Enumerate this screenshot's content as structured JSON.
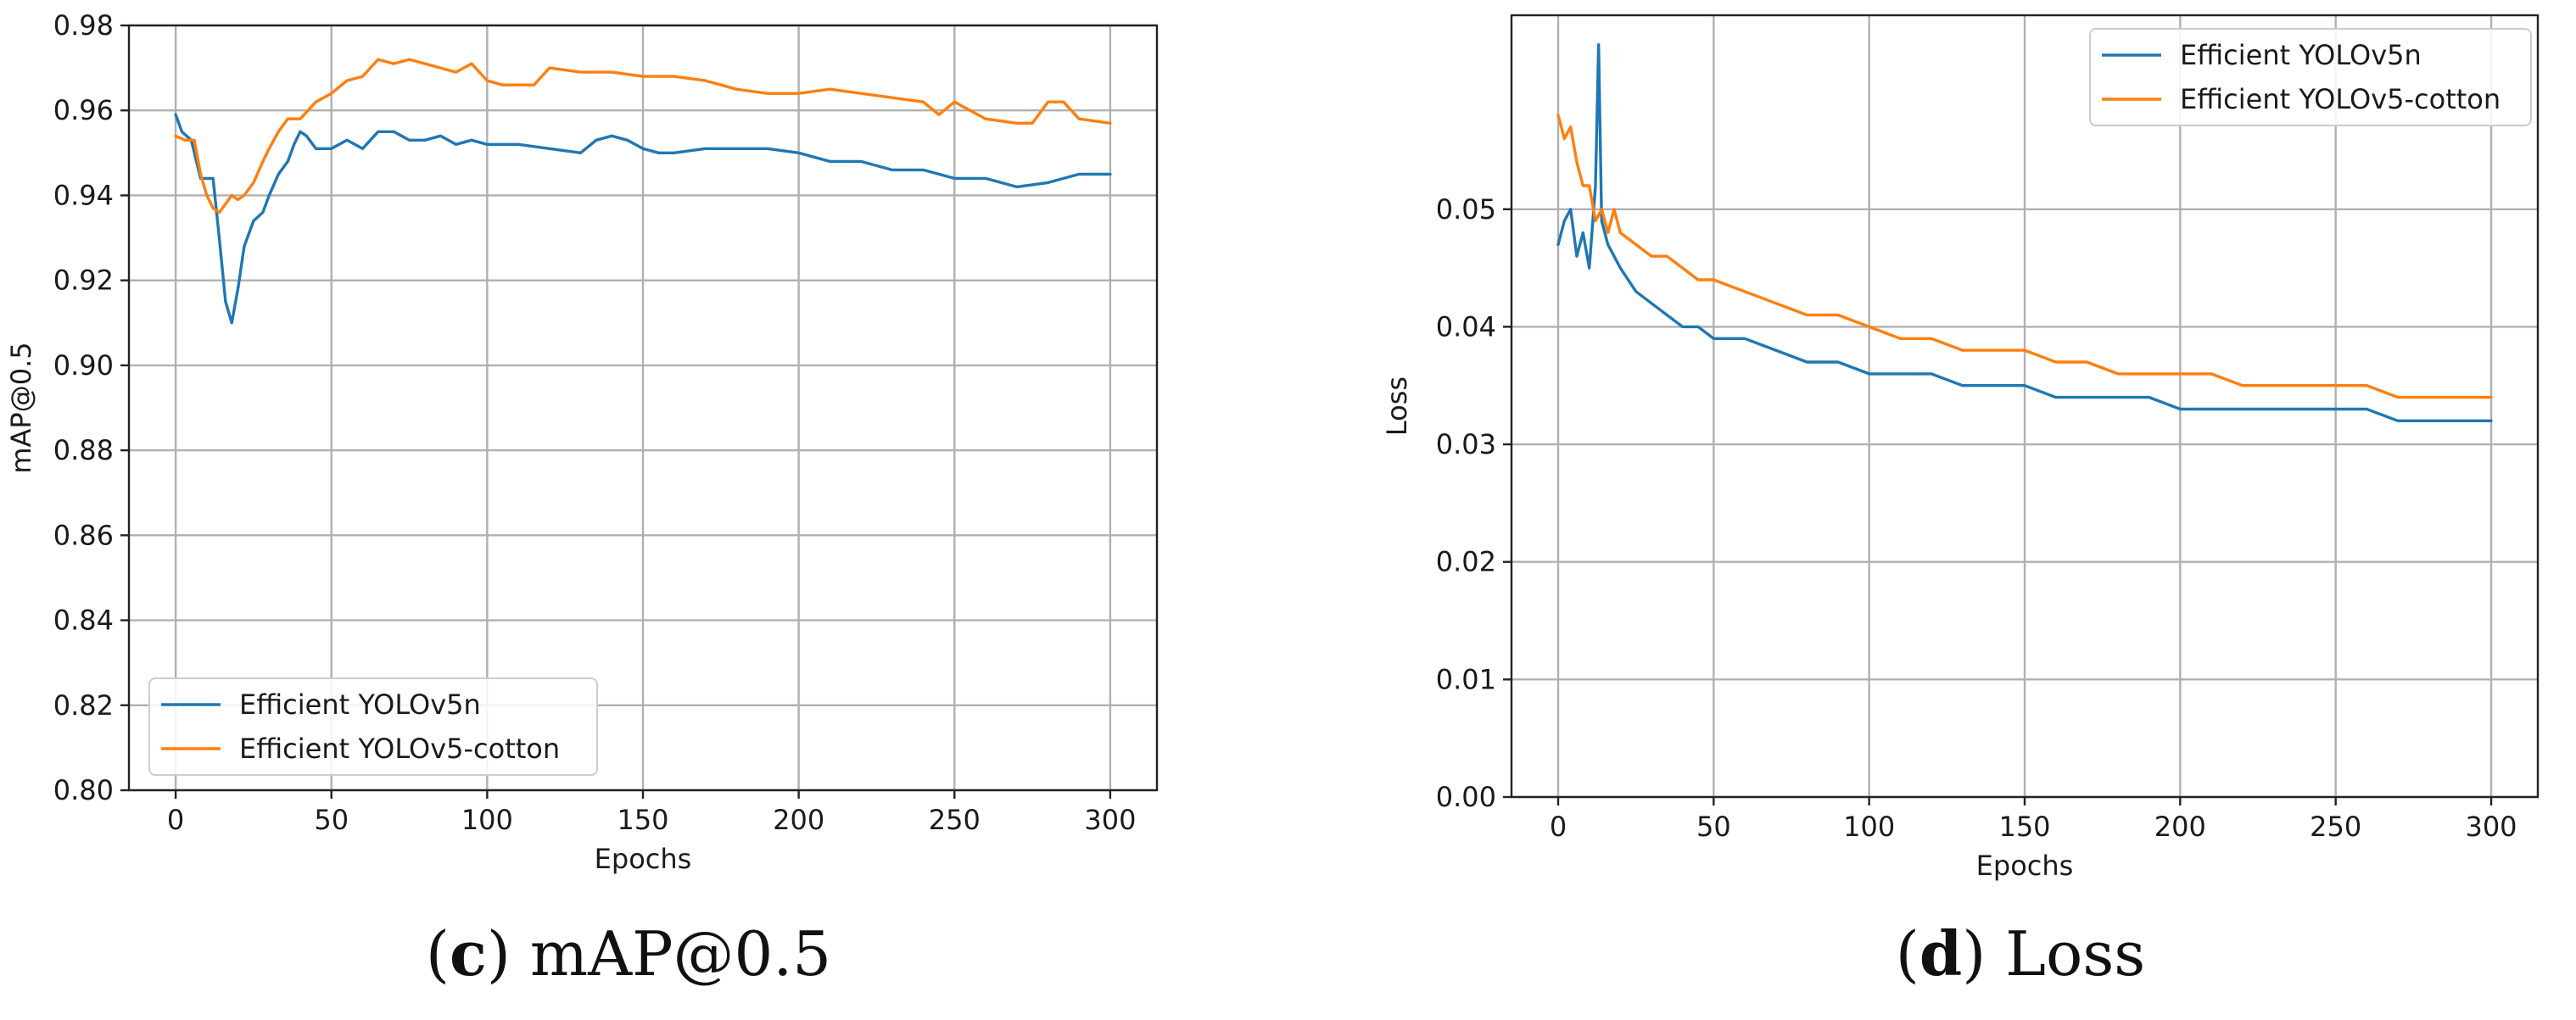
{
  "figure": {
    "captions": [
      {
        "letter": "c",
        "text": " mAP@0.5"
      },
      {
        "letter": "d",
        "text": " Loss"
      }
    ]
  },
  "chart_data": [
    {
      "type": "line",
      "title": "",
      "xlabel": "Epochs",
      "ylabel": "mAP@0.5",
      "xlim": [
        -15,
        315
      ],
      "ylim": [
        0.8,
        0.98
      ],
      "xticks": [
        0,
        50,
        100,
        150,
        200,
        250,
        300
      ],
      "yticks": [
        0.8,
        0.82,
        0.84,
        0.86,
        0.88,
        0.9,
        0.92,
        0.94,
        0.96,
        0.98
      ],
      "ytick_decimals": 2,
      "grid": true,
      "legend_position": "lower-left",
      "series": [
        {
          "name": "Efficient YOLOv5n",
          "color": "#1f77b4",
          "x": [
            0,
            2,
            5,
            8,
            10,
            12,
            14,
            16,
            18,
            20,
            22,
            25,
            28,
            30,
            33,
            36,
            38,
            40,
            42,
            45,
            50,
            55,
            60,
            65,
            70,
            75,
            80,
            85,
            90,
            95,
            100,
            110,
            120,
            130,
            135,
            140,
            145,
            150,
            155,
            160,
            170,
            180,
            190,
            200,
            210,
            220,
            230,
            240,
            250,
            260,
            270,
            280,
            290,
            300
          ],
          "y": [
            0.959,
            0.955,
            0.953,
            0.944,
            0.944,
            0.944,
            0.93,
            0.915,
            0.91,
            0.918,
            0.928,
            0.934,
            0.936,
            0.94,
            0.945,
            0.948,
            0.952,
            0.955,
            0.954,
            0.951,
            0.951,
            0.953,
            0.951,
            0.955,
            0.955,
            0.953,
            0.953,
            0.954,
            0.952,
            0.953,
            0.952,
            0.952,
            0.951,
            0.95,
            0.953,
            0.954,
            0.953,
            0.951,
            0.95,
            0.95,
            0.951,
            0.951,
            0.951,
            0.95,
            0.948,
            0.948,
            0.946,
            0.946,
            0.944,
            0.944,
            0.942,
            0.943,
            0.945,
            0.945
          ]
        },
        {
          "name": "Efficient YOLOv5-cotton",
          "color": "#ff7f0e",
          "x": [
            0,
            3,
            6,
            8,
            10,
            12,
            14,
            16,
            18,
            20,
            22,
            25,
            28,
            30,
            33,
            36,
            40,
            45,
            50,
            55,
            60,
            65,
            70,
            75,
            80,
            85,
            90,
            95,
            100,
            105,
            110,
            115,
            120,
            130,
            140,
            150,
            160,
            170,
            180,
            190,
            200,
            210,
            220,
            230,
            240,
            245,
            250,
            260,
            270,
            275,
            280,
            285,
            290,
            300
          ],
          "y": [
            0.954,
            0.953,
            0.953,
            0.945,
            0.94,
            0.937,
            0.936,
            0.938,
            0.94,
            0.939,
            0.94,
            0.943,
            0.948,
            0.951,
            0.955,
            0.958,
            0.958,
            0.962,
            0.964,
            0.967,
            0.968,
            0.972,
            0.971,
            0.972,
            0.971,
            0.97,
            0.969,
            0.971,
            0.967,
            0.966,
            0.966,
            0.966,
            0.97,
            0.969,
            0.969,
            0.968,
            0.968,
            0.967,
            0.965,
            0.964,
            0.964,
            0.965,
            0.964,
            0.963,
            0.962,
            0.959,
            0.962,
            0.958,
            0.957,
            0.957,
            0.962,
            0.962,
            0.958,
            0.957
          ]
        }
      ]
    },
    {
      "type": "line",
      "title": "",
      "xlabel": "Epochs",
      "ylabel": "Loss",
      "xlim": [
        -15,
        315
      ],
      "ylim": [
        0.0,
        0.0665
      ],
      "xticks": [
        0,
        50,
        100,
        150,
        200,
        250,
        300
      ],
      "yticks": [
        0.0,
        0.01,
        0.02,
        0.03,
        0.04,
        0.05
      ],
      "ytick_decimals": 2,
      "grid": true,
      "legend_position": "upper-right",
      "series": [
        {
          "name": "Efficient YOLOv5n",
          "color": "#1f77b4",
          "x": [
            0,
            2,
            4,
            6,
            8,
            10,
            12,
            13,
            14,
            16,
            18,
            20,
            25,
            30,
            35,
            40,
            45,
            50,
            60,
            70,
            80,
            90,
            100,
            110,
            120,
            130,
            140,
            150,
            160,
            170,
            180,
            190,
            200,
            210,
            220,
            230,
            240,
            250,
            260,
            270,
            280,
            290,
            300
          ],
          "y": [
            0.047,
            0.049,
            0.05,
            0.046,
            0.048,
            0.045,
            0.052,
            0.064,
            0.049,
            0.047,
            0.046,
            0.045,
            0.043,
            0.042,
            0.041,
            0.04,
            0.04,
            0.039,
            0.039,
            0.038,
            0.037,
            0.037,
            0.036,
            0.036,
            0.036,
            0.035,
            0.035,
            0.035,
            0.034,
            0.034,
            0.034,
            0.034,
            0.033,
            0.033,
            0.033,
            0.033,
            0.033,
            0.033,
            0.033,
            0.032,
            0.032,
            0.032,
            0.032
          ]
        },
        {
          "name": "Efficient YOLOv5-cotton",
          "color": "#ff7f0e",
          "x": [
            0,
            2,
            4,
            6,
            8,
            10,
            12,
            14,
            16,
            18,
            20,
            25,
            30,
            35,
            40,
            45,
            50,
            60,
            70,
            80,
            90,
            100,
            110,
            120,
            130,
            140,
            150,
            160,
            170,
            180,
            190,
            200,
            210,
            220,
            230,
            240,
            250,
            260,
            270,
            280,
            290,
            300
          ],
          "y": [
            0.058,
            0.056,
            0.057,
            0.054,
            0.052,
            0.052,
            0.049,
            0.05,
            0.048,
            0.05,
            0.048,
            0.047,
            0.046,
            0.046,
            0.045,
            0.044,
            0.044,
            0.043,
            0.042,
            0.041,
            0.041,
            0.04,
            0.039,
            0.039,
            0.038,
            0.038,
            0.038,
            0.037,
            0.037,
            0.036,
            0.036,
            0.036,
            0.036,
            0.035,
            0.035,
            0.035,
            0.035,
            0.035,
            0.034,
            0.034,
            0.034,
            0.034
          ]
        }
      ]
    }
  ]
}
